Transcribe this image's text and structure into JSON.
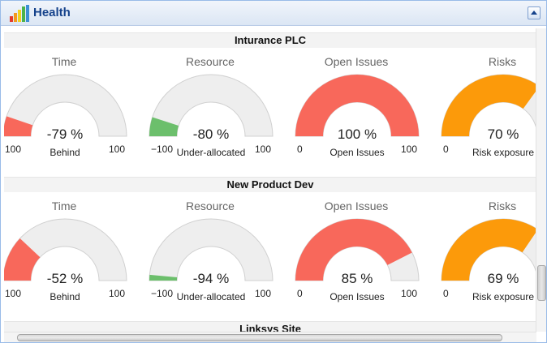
{
  "panel": {
    "title": "Health",
    "icon": "bar-chart-icon"
  },
  "projects": [
    {
      "name": "Inturance PLC",
      "gauges": [
        {
          "label": "Time",
          "value": -79,
          "value_text": "-79 %",
          "caption": "Behind",
          "min": -100,
          "max": 100,
          "min_text": "100",
          "max_text": "100",
          "color": "#f8685b"
        },
        {
          "label": "Resource",
          "value": -80,
          "value_text": "-80 %",
          "caption": "Under-allocated",
          "min": -100,
          "max": 100,
          "min_text": "−100",
          "max_text": "100",
          "color": "#6cbf6c"
        },
        {
          "label": "Open Issues",
          "value": 100,
          "value_text": "100 %",
          "caption": "Open Issues",
          "min": 0,
          "max": 100,
          "min_text": "0",
          "max_text": "100",
          "color": "#f8685b"
        },
        {
          "label": "Risks",
          "value": 70,
          "value_text": "70 %",
          "caption": "Risk exposure",
          "min": 0,
          "max": 100,
          "min_text": "0",
          "max_text": "",
          "color": "#fc9a0a"
        }
      ]
    },
    {
      "name": "New Product Dev",
      "gauges": [
        {
          "label": "Time",
          "value": -52,
          "value_text": "-52 %",
          "caption": "Behind",
          "min": -100,
          "max": 100,
          "min_text": "100",
          "max_text": "100",
          "color": "#f8685b"
        },
        {
          "label": "Resource",
          "value": -94,
          "value_text": "-94 %",
          "caption": "Under-allocated",
          "min": -100,
          "max": 100,
          "min_text": "−100",
          "max_text": "100",
          "color": "#6cbf6c"
        },
        {
          "label": "Open Issues",
          "value": 85,
          "value_text": "85 %",
          "caption": "Open Issues",
          "min": 0,
          "max": 100,
          "min_text": "0",
          "max_text": "100",
          "color": "#f8685b"
        },
        {
          "label": "Risks",
          "value": 69,
          "value_text": "69 %",
          "caption": "Risk exposure",
          "min": 0,
          "max": 100,
          "min_text": "0",
          "max_text": "",
          "color": "#fc9a0a"
        }
      ]
    },
    {
      "name": "Linksys Site",
      "gauges": []
    }
  ],
  "colors": {
    "track": "#eeeeee",
    "track_border": "#d0d0d0"
  }
}
